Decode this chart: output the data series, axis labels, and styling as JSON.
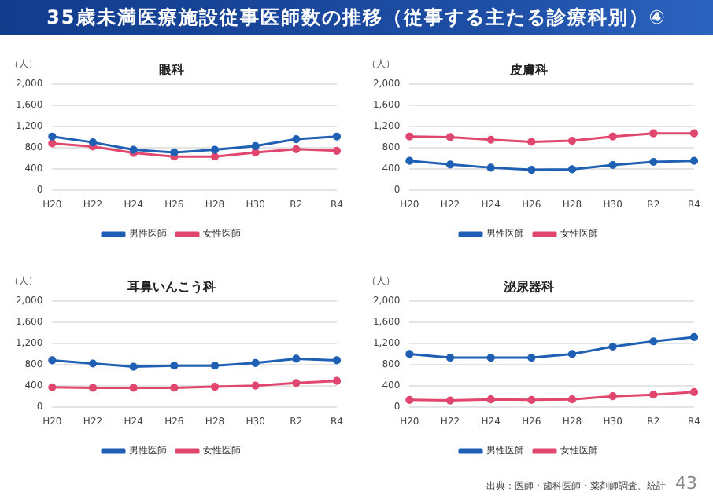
{
  "chart_data": [
    {
      "type": "line",
      "title": "眼科",
      "ylabel": "（人）",
      "annotations": [
        "35歳未満医療施設従事医師数の推移（従事する主たる診療科別）④"
      ],
      "categories": [
        "H20",
        "H22",
        "H24",
        "H26",
        "H28",
        "H30",
        "R2",
        "R4"
      ],
      "ylim": [
        0,
        2000
      ],
      "yticks": [
        {
          "value": 0,
          "label": "0"
        },
        {
          "value": 400,
          "label": "400"
        },
        {
          "value": 800,
          "label": "800"
        },
        {
          "value": 1200,
          "label": "1,200"
        },
        {
          "value": 1600,
          "label": "1,600"
        },
        {
          "value": 2000,
          "label": "2,000"
        }
      ],
      "grid": "y",
      "legend": "bottom",
      "marker": "circle",
      "series": [
        {
          "name": "男性医師",
          "color": "#1f5fb4",
          "values": [
            1010,
            900,
            760,
            710,
            760,
            830,
            960,
            1010
          ]
        },
        {
          "name": "女性医師",
          "color": "#e0466e",
          "values": [
            880,
            820,
            700,
            630,
            630,
            710,
            770,
            740
          ]
        }
      ]
    },
    {
      "type": "line",
      "title": "皮膚科",
      "ylabel": "（人）",
      "categories": [
        "H20",
        "H22",
        "H24",
        "H26",
        "H28",
        "H30",
        "R2",
        "R4"
      ],
      "ylim": [
        0,
        2000
      ],
      "yticks": [
        {
          "value": 0,
          "label": "0"
        },
        {
          "value": 400,
          "label": "400"
        },
        {
          "value": 800,
          "label": "800"
        },
        {
          "value": 1200,
          "label": "1,200"
        },
        {
          "value": 1600,
          "label": "1,600"
        },
        {
          "value": 2000,
          "label": "2,000"
        }
      ],
      "grid": "y",
      "legend": "bottom",
      "marker": "circle",
      "series": [
        {
          "name": "男性医師",
          "color": "#1f5fb4",
          "values": [
            550,
            480,
            420,
            380,
            390,
            470,
            530,
            550
          ]
        },
        {
          "name": "女性医師",
          "color": "#e0466e",
          "values": [
            1010,
            1000,
            950,
            910,
            930,
            1010,
            1070,
            1070
          ]
        }
      ]
    },
    {
      "type": "line",
      "title": "耳鼻いんこう科",
      "ylabel": "（人）",
      "categories": [
        "H20",
        "H22",
        "H24",
        "H26",
        "H28",
        "H30",
        "R2",
        "R4"
      ],
      "ylim": [
        0,
        2000
      ],
      "yticks": [
        {
          "value": 0,
          "label": "0"
        },
        {
          "value": 400,
          "label": "400"
        },
        {
          "value": 800,
          "label": "800"
        },
        {
          "value": 1200,
          "label": "1,200"
        },
        {
          "value": 1600,
          "label": "1,600"
        },
        {
          "value": 2000,
          "label": "2,000"
        }
      ],
      "grid": "y",
      "legend": "bottom",
      "marker": "circle",
      "series": [
        {
          "name": "男性医師",
          "color": "#1f5fb4",
          "values": [
            880,
            820,
            760,
            780,
            780,
            830,
            910,
            880
          ]
        },
        {
          "name": "女性医師",
          "color": "#e0466e",
          "values": [
            370,
            360,
            360,
            360,
            380,
            400,
            450,
            490
          ]
        }
      ]
    },
    {
      "type": "line",
      "title": "泌尿器科",
      "ylabel": "（人）",
      "annotations": [
        "出典：医師・歯科医師・薬剤師調査、統計",
        "43"
      ],
      "categories": [
        "H20",
        "H22",
        "H24",
        "H26",
        "H28",
        "H30",
        "R2",
        "R4"
      ],
      "ylim": [
        0,
        2000
      ],
      "yticks": [
        {
          "value": 0,
          "label": "0"
        },
        {
          "value": 400,
          "label": "400"
        },
        {
          "value": 800,
          "label": "800"
        },
        {
          "value": 1200,
          "label": "1,200"
        },
        {
          "value": 1600,
          "label": "1,600"
        },
        {
          "value": 2000,
          "label": "2,000"
        }
      ],
      "grid": "y",
      "legend": "bottom",
      "marker": "circle",
      "series": [
        {
          "name": "男性医師",
          "color": "#1f5fb4",
          "values": [
            1000,
            930,
            930,
            930,
            1000,
            1140,
            1240,
            1320
          ]
        },
        {
          "name": "女性医師",
          "color": "#e0466e",
          "values": [
            130,
            120,
            140,
            130,
            140,
            200,
            230,
            280
          ]
        }
      ]
    }
  ]
}
